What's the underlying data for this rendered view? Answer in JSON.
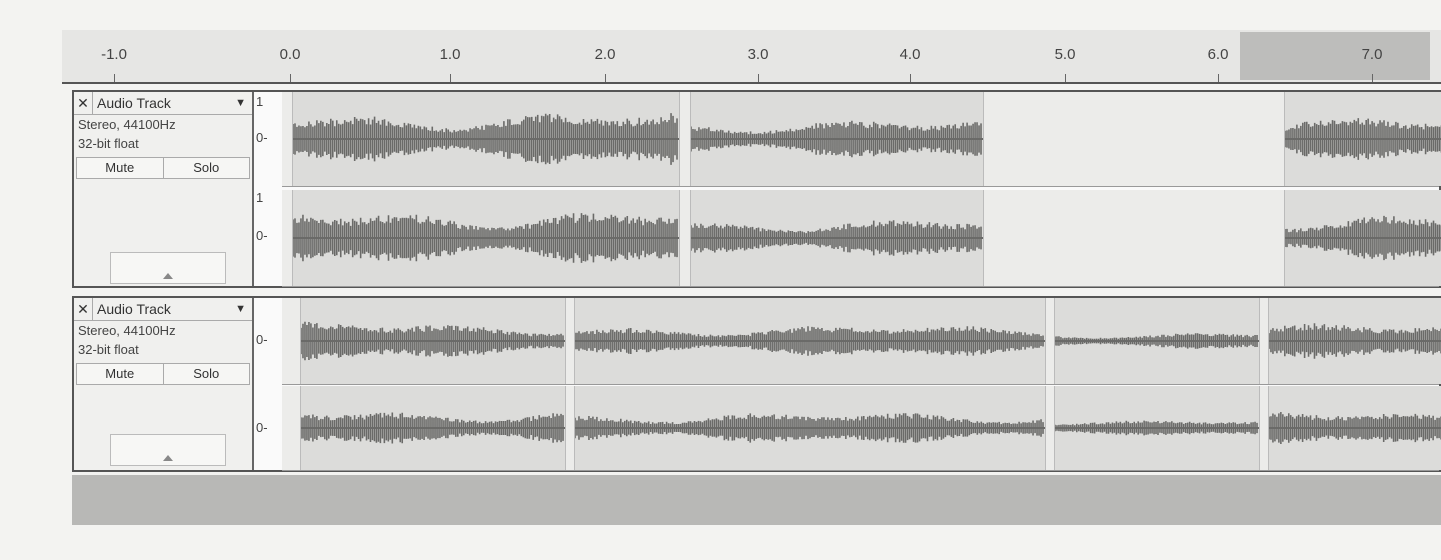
{
  "ruler": {
    "labels": [
      "-1.0",
      "0.0",
      "1.0",
      "2.0",
      "3.0",
      "4.0",
      "5.0",
      "6.0",
      "7.0"
    ]
  },
  "tracks": [
    {
      "close": "✕",
      "name": "Audio Track",
      "dropdown": "▼",
      "format": "Stereo, 44100Hz",
      "bitdepth": "32-bit float",
      "mute": "Mute",
      "solo": "Solo",
      "scale_top": "1",
      "scale_zero": "0-"
    },
    {
      "close": "✕",
      "name": "Audio Track",
      "dropdown": "▼",
      "format": "Stereo, 44100Hz",
      "bitdepth": "32-bit float",
      "mute": "Mute",
      "solo": "Solo",
      "scale_zero": "0-"
    }
  ],
  "colors": {
    "waveform": "#6a6a68",
    "clip_bg": "#d6d6d4",
    "selection": "#bdbdbb"
  }
}
